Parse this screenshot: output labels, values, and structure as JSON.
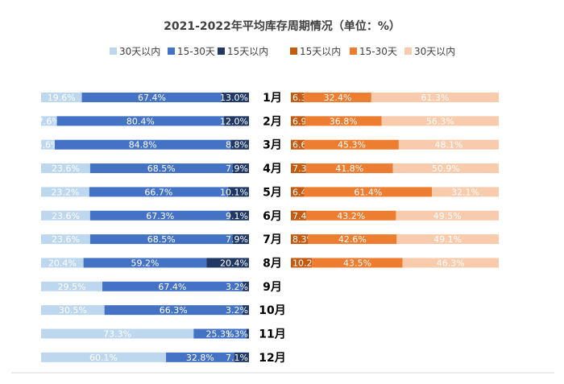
{
  "chart_data": {
    "type": "bar",
    "title": "2021-2022年平均库存周期情况（单位：%）",
    "left_series": [
      {
        "name": "30天以内",
        "color": "#bdd7ee"
      },
      {
        "name": "15-30天",
        "color": "#4472c4"
      },
      {
        "name": "15天以内",
        "color": "#1f3864"
      }
    ],
    "right_series": [
      {
        "name": "15天以内",
        "color": "#c55a11"
      },
      {
        "name": "15-30天",
        "color": "#ed7d31"
      },
      {
        "name": "30天以内",
        "color": "#f8cbad"
      }
    ],
    "legend_placement": "top",
    "categories": [
      "1月",
      "2月",
      "3月",
      "4月",
      "5月",
      "6月",
      "7月",
      "8月",
      "9月",
      "10月",
      "11月",
      "12月"
    ],
    "left_values": [
      [
        19.6,
        67.4,
        13.0
      ],
      [
        7.6,
        80.4,
        12.0
      ],
      [
        6.6,
        84.8,
        8.8
      ],
      [
        23.6,
        68.5,
        7.9
      ],
      [
        23.2,
        66.7,
        10.1
      ],
      [
        23.6,
        67.3,
        9.1
      ],
      [
        23.6,
        68.5,
        7.9
      ],
      [
        20.4,
        59.2,
        20.4
      ],
      [
        29.5,
        67.4,
        3.2
      ],
      [
        30.5,
        66.3,
        3.2
      ],
      [
        73.3,
        25.3,
        1.3
      ],
      [
        60.1,
        32.8,
        7.1
      ]
    ],
    "left_labels": [
      [
        "19.6%",
        "67.4%",
        "13.0%"
      ],
      [
        "7.6%",
        "80.4%",
        "12.0%"
      ],
      [
        "6.6%",
        "84.8%",
        "8.8%"
      ],
      [
        "23.6%",
        "68.5%",
        "7.9%"
      ],
      [
        "23.2%",
        "66.7%",
        "10.1%"
      ],
      [
        "23.6%",
        "67.3%",
        "9.1%"
      ],
      [
        "23.6%",
        "68.5%",
        "7.9%"
      ],
      [
        "20.4%",
        "59.2%",
        "20.4%"
      ],
      [
        "29.5%",
        "67.4%",
        "3.2%"
      ],
      [
        "30.5%",
        "66.3%",
        "3.2%"
      ],
      [
        "73.3%",
        "25.3%",
        "1.3%"
      ],
      [
        "60.1%",
        "32.8%",
        "7.1%"
      ]
    ],
    "right_values": [
      [
        6.3,
        32.4,
        61.3
      ],
      [
        6.9,
        36.8,
        56.3
      ],
      [
        6.6,
        45.3,
        48.1
      ],
      [
        7.3,
        41.8,
        50.9
      ],
      [
        6.4,
        61.4,
        32.1
      ],
      [
        7.4,
        43.2,
        49.5
      ],
      [
        8.3,
        42.6,
        49.1
      ],
      [
        10.2,
        43.5,
        46.3
      ]
    ],
    "right_labels": [
      [
        "6.3%",
        "32.4%",
        "61.3%"
      ],
      [
        "6.9%",
        "36.8%",
        "56.3%"
      ],
      [
        "6.6%",
        "45.3%",
        "48.1%"
      ],
      [
        "7.3%",
        "41.8%",
        "50.9%"
      ],
      [
        "6.4%",
        "61.4%",
        "32.1%"
      ],
      [
        "7.4%",
        "43.2%",
        "49.5%"
      ],
      [
        "8.3%",
        "42.6%",
        "49.1%"
      ],
      [
        "10.2%",
        "43.5%",
        "46.3%"
      ]
    ]
  }
}
